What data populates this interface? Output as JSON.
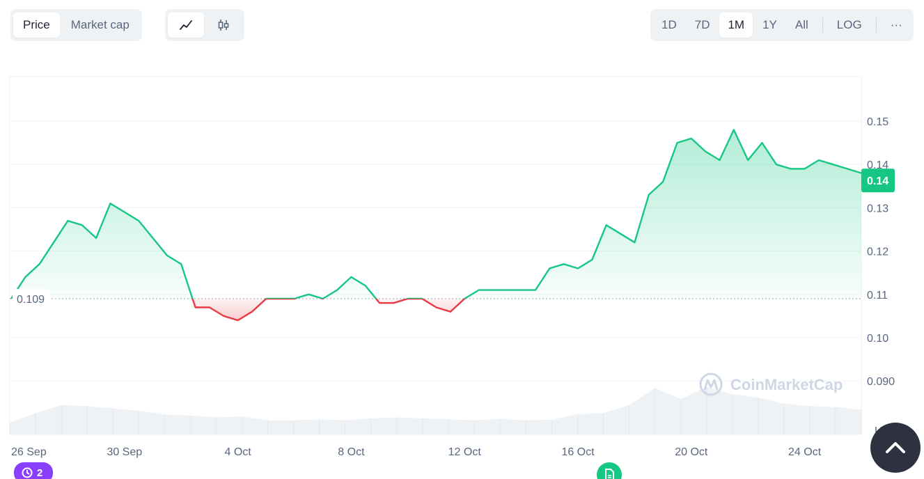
{
  "toolbar": {
    "type_tabs": [
      "Price",
      "Market cap"
    ],
    "active_type": "Price",
    "ranges": [
      "1D",
      "7D",
      "1M",
      "1Y",
      "All"
    ],
    "active_range": "1M",
    "log_label": "LOG",
    "more_label": "···"
  },
  "icons": {
    "line_chart": "line-chart-icon",
    "candlestick": "candlestick-icon",
    "scroll_top": "chevron-up-icon",
    "history": "history-icon",
    "event": "document-icon"
  },
  "watermark": "CoinMarketCap",
  "history_badge": {
    "count": "2"
  },
  "colors": {
    "up": "#16c784",
    "down": "#ea3943",
    "grid": "#eff2f5",
    "text": "#58667e",
    "history_badge": "#8a3ffc",
    "scroll_button": "#2e3240"
  },
  "chart_data": {
    "type": "area",
    "reference_value": 0.109,
    "reference_label": "0.109",
    "current_value": 0.14,
    "current_label": "0.14",
    "ylim": [
      0.08,
      0.16
    ],
    "yticks": [
      0.15,
      0.14,
      0.13,
      0.12,
      0.11,
      0.1,
      0.09
    ],
    "ytick_labels": [
      "0.15",
      "0.14",
      "0.13",
      "0.12",
      "0.11",
      "0.10",
      "0.090"
    ],
    "y_unit": "USD",
    "xlim": [
      "2023-09-26",
      "2023-10-26"
    ],
    "xticks": [
      "2023-09-26",
      "2023-09-30",
      "2023-10-04",
      "2023-10-08",
      "2023-10-12",
      "2023-10-16",
      "2023-10-20",
      "2023-10-24"
    ],
    "xtick_labels": [
      "26 Sep",
      "30 Sep",
      "4 Oct",
      "8 Oct",
      "12 Oct",
      "16 Oct",
      "20 Oct",
      "24 Oct"
    ],
    "series": [
      {
        "values": [
          [
            "2023-09-26T00:00",
            0.109
          ],
          [
            "2023-09-26T12:00",
            0.114
          ],
          [
            "2023-09-27T00:00",
            0.117
          ],
          [
            "2023-09-27T12:00",
            0.122
          ],
          [
            "2023-09-28T00:00",
            0.127
          ],
          [
            "2023-09-28T12:00",
            0.126
          ],
          [
            "2023-09-29T00:00",
            0.123
          ],
          [
            "2023-09-29T12:00",
            0.131
          ],
          [
            "2023-09-30T00:00",
            0.129
          ],
          [
            "2023-09-30T12:00",
            0.127
          ],
          [
            "2023-10-01T00:00",
            0.123
          ],
          [
            "2023-10-01T12:00",
            0.119
          ],
          [
            "2023-10-02T00:00",
            0.117
          ],
          [
            "2023-10-02T12:00",
            0.107
          ],
          [
            "2023-10-03T00:00",
            0.107
          ],
          [
            "2023-10-03T12:00",
            0.105
          ],
          [
            "2023-10-04T00:00",
            0.104
          ],
          [
            "2023-10-04T12:00",
            0.106
          ],
          [
            "2023-10-05T00:00",
            0.109
          ],
          [
            "2023-10-05T12:00",
            0.109
          ],
          [
            "2023-10-06T00:00",
            0.109
          ],
          [
            "2023-10-06T12:00",
            0.11
          ],
          [
            "2023-10-07T00:00",
            0.109
          ],
          [
            "2023-10-07T12:00",
            0.111
          ],
          [
            "2023-10-08T00:00",
            0.114
          ],
          [
            "2023-10-08T12:00",
            0.112
          ],
          [
            "2023-10-09T00:00",
            0.108
          ],
          [
            "2023-10-09T12:00",
            0.108
          ],
          [
            "2023-10-10T00:00",
            0.109
          ],
          [
            "2023-10-10T12:00",
            0.109
          ],
          [
            "2023-10-11T00:00",
            0.107
          ],
          [
            "2023-10-11T12:00",
            0.106
          ],
          [
            "2023-10-12T00:00",
            0.109
          ],
          [
            "2023-10-12T12:00",
            0.111
          ],
          [
            "2023-10-13T00:00",
            0.111
          ],
          [
            "2023-10-13T12:00",
            0.111
          ],
          [
            "2023-10-14T00:00",
            0.111
          ],
          [
            "2023-10-14T12:00",
            0.111
          ],
          [
            "2023-10-15T00:00",
            0.116
          ],
          [
            "2023-10-15T12:00",
            0.117
          ],
          [
            "2023-10-16T00:00",
            0.116
          ],
          [
            "2023-10-16T12:00",
            0.118
          ],
          [
            "2023-10-17T00:00",
            0.126
          ],
          [
            "2023-10-17T12:00",
            0.124
          ],
          [
            "2023-10-18T00:00",
            0.122
          ],
          [
            "2023-10-18T12:00",
            0.133
          ],
          [
            "2023-10-19T00:00",
            0.136
          ],
          [
            "2023-10-19T12:00",
            0.145
          ],
          [
            "2023-10-20T00:00",
            0.146
          ],
          [
            "2023-10-20T12:00",
            0.143
          ],
          [
            "2023-10-21T00:00",
            0.141
          ],
          [
            "2023-10-21T12:00",
            0.148
          ],
          [
            "2023-10-22T00:00",
            0.141
          ],
          [
            "2023-10-22T12:00",
            0.145
          ],
          [
            "2023-10-23T00:00",
            0.14
          ],
          [
            "2023-10-23T12:00",
            0.139
          ],
          [
            "2023-10-24T00:00",
            0.139
          ],
          [
            "2023-10-24T12:00",
            0.141
          ],
          [
            "2023-10-25T00:00",
            0.14
          ],
          [
            "2023-10-25T12:00",
            0.139
          ],
          [
            "2023-10-26T00:00",
            0.138
          ]
        ]
      }
    ],
    "volume_relative": [
      0.25,
      0.45,
      0.62,
      0.6,
      0.55,
      0.5,
      0.42,
      0.4,
      0.36,
      0.38,
      0.3,
      0.3,
      0.32,
      0.3,
      0.34,
      0.36,
      0.34,
      0.32,
      0.3,
      0.33,
      0.3,
      0.31,
      0.43,
      0.45,
      0.62,
      0.98,
      0.75,
      1.0,
      0.85,
      0.78,
      0.65,
      0.6,
      0.58,
      0.52
    ],
    "grid": true
  }
}
